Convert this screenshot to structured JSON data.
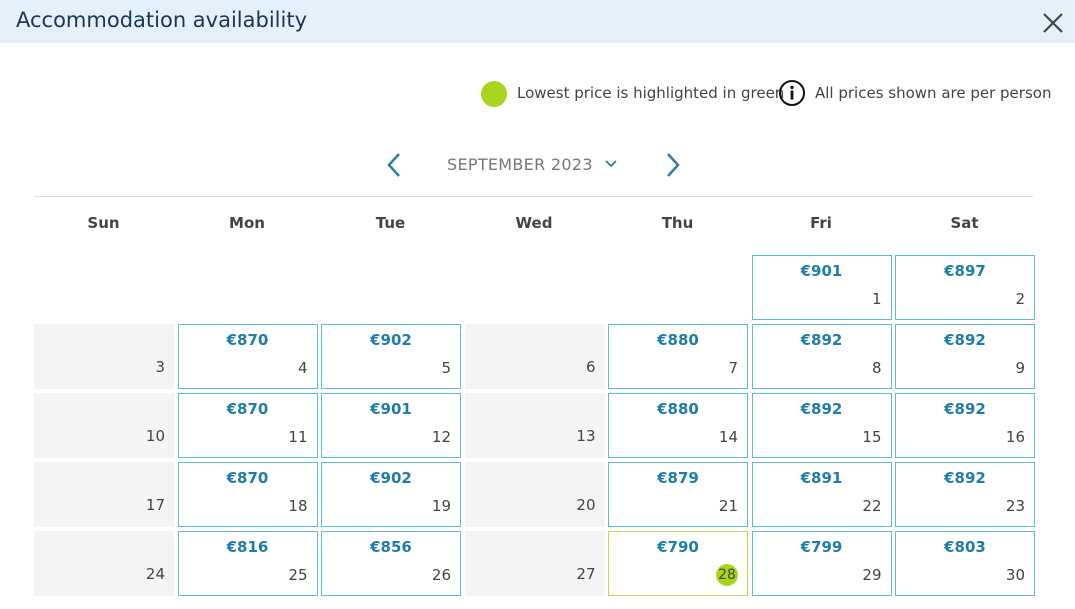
{
  "header": {
    "title": "Accommodation availability"
  },
  "legend": {
    "lowest": "Lowest price is highlighted in green",
    "info": "All prices shown are per person"
  },
  "month": "SEPTEMBER 2023",
  "weekdays": [
    "Sun",
    "Mon",
    "Tue",
    "Wed",
    "Thu",
    "Fri",
    "Sat"
  ],
  "weeks": [
    [
      null,
      null,
      null,
      null,
      null,
      {
        "day": 1,
        "price": "€901"
      },
      {
        "day": 2,
        "price": "€897"
      }
    ],
    [
      {
        "day": 3
      },
      {
        "day": 4,
        "price": "€870"
      },
      {
        "day": 5,
        "price": "€902"
      },
      {
        "day": 6
      },
      {
        "day": 7,
        "price": "€880"
      },
      {
        "day": 8,
        "price": "€892"
      },
      {
        "day": 9,
        "price": "€892"
      }
    ],
    [
      {
        "day": 10
      },
      {
        "day": 11,
        "price": "€870"
      },
      {
        "day": 12,
        "price": "€901"
      },
      {
        "day": 13
      },
      {
        "day": 14,
        "price": "€880"
      },
      {
        "day": 15,
        "price": "€892"
      },
      {
        "day": 16,
        "price": "€892"
      }
    ],
    [
      {
        "day": 17
      },
      {
        "day": 18,
        "price": "€870"
      },
      {
        "day": 19,
        "price": "€902"
      },
      {
        "day": 20
      },
      {
        "day": 21,
        "price": "€879"
      },
      {
        "day": 22,
        "price": "€891"
      },
      {
        "day": 23,
        "price": "€892"
      }
    ],
    [
      {
        "day": 24
      },
      {
        "day": 25,
        "price": "€816"
      },
      {
        "day": 26,
        "price": "€856"
      },
      {
        "day": 27
      },
      {
        "day": 28,
        "price": "€790",
        "lowest": true
      },
      {
        "day": 29,
        "price": "€799"
      },
      {
        "day": 30,
        "price": "€803"
      }
    ]
  ]
}
